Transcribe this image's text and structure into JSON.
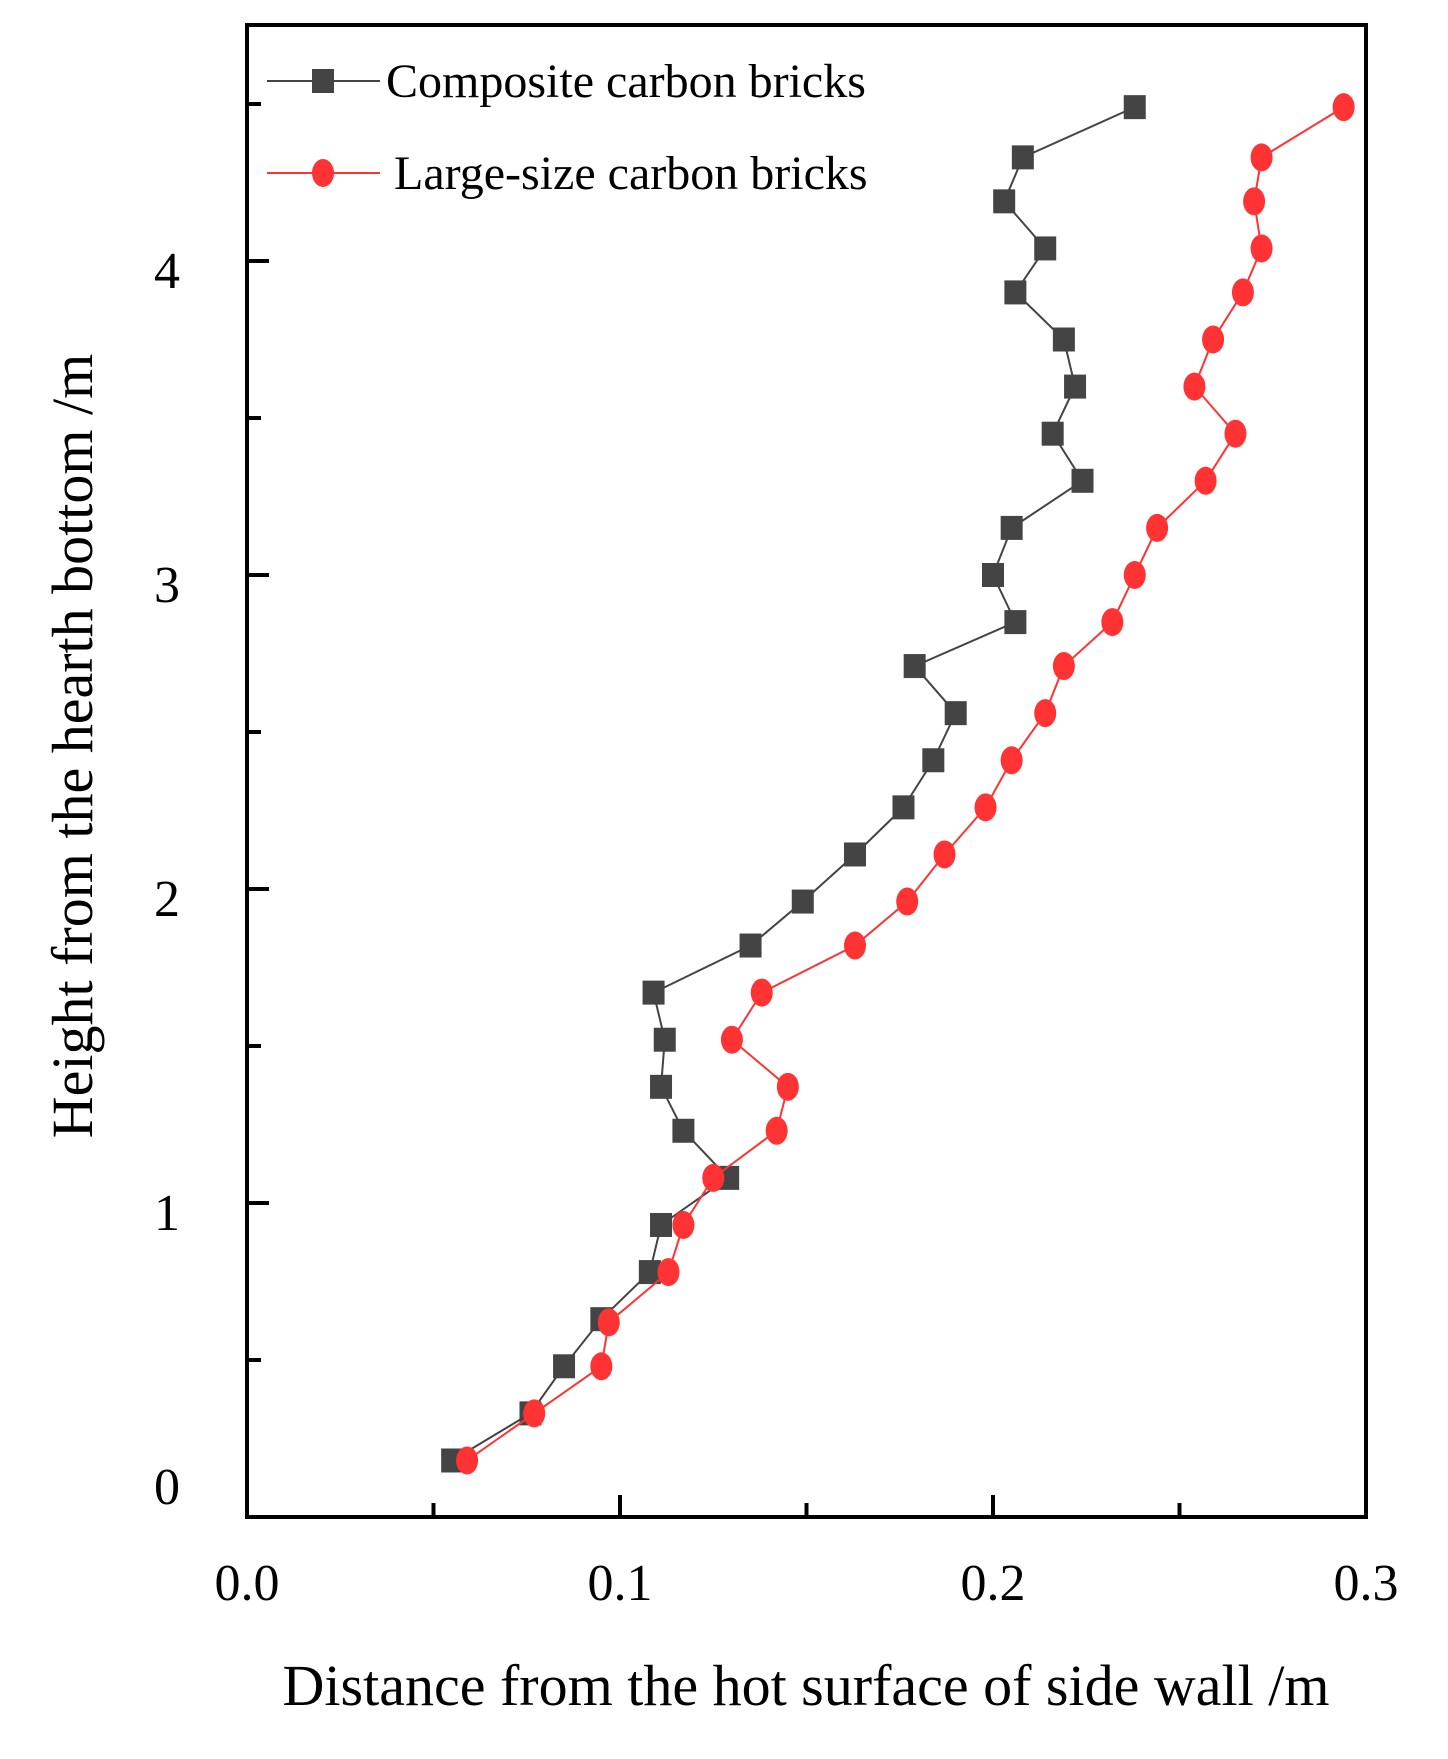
{
  "chart_data": {
    "type": "line",
    "xlabel": "Distance from the hot surface of side wall /m",
    "ylabel": "Height from the hearth bottom /m",
    "xlim": [
      0,
      0.3
    ],
    "ylim": [
      0,
      4.76
    ],
    "x_ticks": [
      0.0,
      0.1,
      0.2,
      0.3
    ],
    "x_tick_labels": [
      "0.0",
      "0.1",
      "0.2",
      "0.3"
    ],
    "y_ticks": [
      0,
      1,
      2,
      3,
      4
    ],
    "y_tick_labels": [
      "0",
      "1",
      "2",
      "3",
      "4"
    ],
    "grid": false,
    "legend_placement": "top-left",
    "series": [
      {
        "name": "Composite carbon bricks",
        "color": "#444444",
        "marker": "square",
        "x": [
          0.055,
          0.076,
          0.085,
          0.095,
          0.108,
          0.111,
          0.129,
          0.117,
          0.111,
          0.112,
          0.109,
          0.135,
          0.149,
          0.163,
          0.176,
          0.184,
          0.19,
          0.179,
          0.206,
          0.2,
          0.205,
          0.224,
          0.216,
          0.222,
          0.219,
          0.206,
          0.214,
          0.203,
          0.208,
          0.238
        ],
        "y": [
          0.18,
          0.33,
          0.48,
          0.63,
          0.78,
          0.93,
          1.08,
          1.23,
          1.37,
          1.52,
          1.67,
          1.82,
          1.96,
          2.11,
          2.26,
          2.41,
          2.56,
          2.71,
          2.85,
          3.0,
          3.15,
          3.3,
          3.45,
          3.6,
          3.75,
          3.9,
          4.04,
          4.19,
          4.33,
          4.49
        ]
      },
      {
        "name": "Large-size carbon bricks",
        "color": "#ff3333",
        "marker": "circle",
        "x": [
          0.059,
          0.077,
          0.095,
          0.097,
          0.113,
          0.117,
          0.125,
          0.142,
          0.145,
          0.13,
          0.138,
          0.163,
          0.177,
          0.187,
          0.198,
          0.205,
          0.214,
          0.219,
          0.232,
          0.238,
          0.244,
          0.257,
          0.265,
          0.254,
          0.259,
          0.267,
          0.272,
          0.27,
          0.272,
          0.294
        ],
        "y": [
          0.18,
          0.33,
          0.48,
          0.62,
          0.78,
          0.93,
          1.08,
          1.23,
          1.37,
          1.52,
          1.67,
          1.82,
          1.96,
          2.11,
          2.26,
          2.41,
          2.56,
          2.71,
          2.85,
          3.0,
          3.15,
          3.3,
          3.45,
          3.6,
          3.75,
          3.9,
          4.04,
          4.19,
          4.33,
          4.49
        ]
      }
    ]
  }
}
